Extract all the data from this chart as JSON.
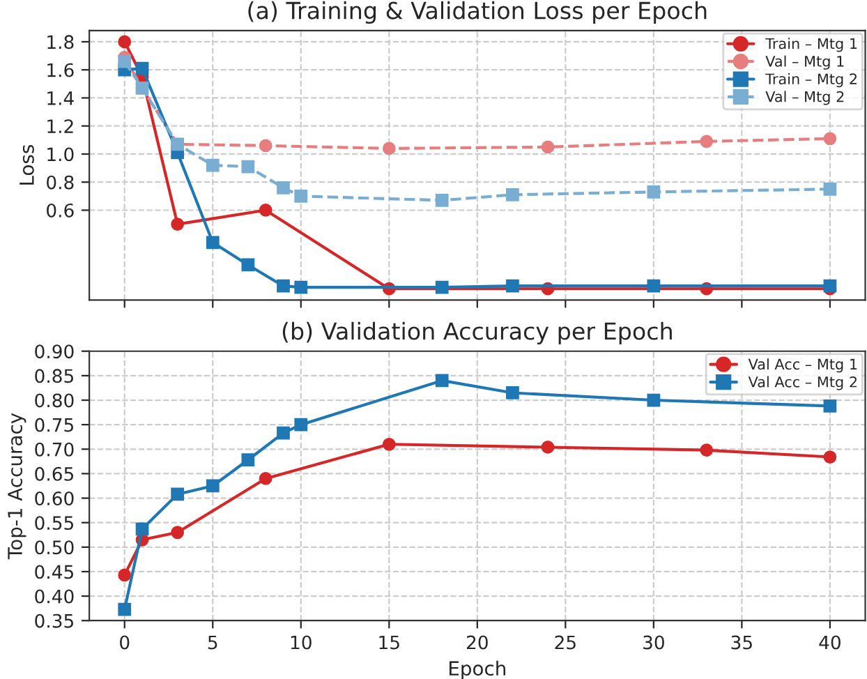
{
  "chart_data": [
    {
      "type": "line",
      "title": "(a) Training & Validation Loss per Epoch",
      "ylabel": "Loss",
      "xlim": [
        -2,
        42
      ],
      "xticks": [
        {
          "value": 0,
          "label": null
        },
        {
          "value": 5,
          "label": null
        },
        {
          "value": 10,
          "label": null
        },
        {
          "value": 15,
          "label": null
        },
        {
          "value": 20,
          "label": null
        },
        {
          "value": 25,
          "label": null
        },
        {
          "value": 30,
          "label": null
        },
        {
          "value": 35,
          "label": null
        },
        {
          "value": 40,
          "label": null
        }
      ],
      "ylim": [
        -0.04,
        1.88
      ],
      "yticks": [
        {
          "value": 0.6,
          "label": "0.6"
        },
        {
          "value": 0.8,
          "label": "0.8"
        },
        {
          "value": 1.0,
          "label": "1.0"
        },
        {
          "value": 1.2,
          "label": "1.2"
        },
        {
          "value": 1.4,
          "label": "1.4"
        },
        {
          "value": 1.6,
          "label": "1.6"
        },
        {
          "value": 1.8,
          "label": "1.8"
        }
      ],
      "tick_labels": "y",
      "grid": true,
      "legend": "top right",
      "series": [
        {
          "name": "Train – Mtg 1",
          "color": "#d62728",
          "marker": "circle",
          "line_style": "solid",
          "x": [
            0,
            1,
            3,
            8,
            15,
            24,
            33,
            40
          ],
          "values": [
            1.8,
            1.55,
            0.5,
            0.6,
            0.04,
            0.04,
            0.04,
            0.04
          ]
        },
        {
          "name": "Val – Mtg 1",
          "color": "#e67d7e",
          "marker": "circle",
          "line_style": "dashed",
          "x": [
            0,
            1,
            3,
            8,
            15,
            24,
            33,
            40
          ],
          "values": [
            1.69,
            1.47,
            1.07,
            1.06,
            1.04,
            1.05,
            1.09,
            1.11
          ]
        },
        {
          "name": "Train – Mtg 2",
          "color": "#1f77b4",
          "marker": "square",
          "line_style": "solid",
          "x": [
            0,
            1,
            3,
            5,
            7,
            9,
            10,
            18,
            22,
            30,
            40
          ],
          "values": [
            1.6,
            1.61,
            1.01,
            0.37,
            0.21,
            0.06,
            0.05,
            0.05,
            0.06,
            0.06,
            0.06
          ]
        },
        {
          "name": "Val – Mtg 2",
          "color": "#79add2",
          "marker": "square",
          "line_style": "dashed",
          "x": [
            0,
            1,
            3,
            5,
            7,
            9,
            10,
            18,
            22,
            30,
            40
          ],
          "values": [
            1.66,
            1.47,
            1.07,
            0.92,
            0.91,
            0.76,
            0.7,
            0.67,
            0.71,
            0.73,
            0.75
          ]
        }
      ]
    },
    {
      "type": "line",
      "title": "(b) Validation Accuracy per Epoch",
      "xlabel": "Epoch",
      "ylabel": "Top-1 Accuracy",
      "xlim": [
        -2,
        42
      ],
      "xticks": [
        0,
        5,
        10,
        15,
        20,
        25,
        30,
        35,
        40
      ],
      "ylim": [
        0.35,
        0.9
      ],
      "yticks": [
        {
          "value": 0.35,
          "label": "0.35"
        },
        {
          "value": 0.4,
          "label": "0.40"
        },
        {
          "value": 0.45,
          "label": "0.45"
        },
        {
          "value": 0.5,
          "label": "0.50"
        },
        {
          "value": 0.55,
          "label": "0.55"
        },
        {
          "value": 0.6,
          "label": "0.60"
        },
        {
          "value": 0.65,
          "label": "0.65"
        },
        {
          "value": 0.7,
          "label": "0.70"
        },
        {
          "value": 0.75,
          "label": "0.75"
        },
        {
          "value": 0.8,
          "label": "0.80"
        },
        {
          "value": 0.85,
          "label": "0.85"
        },
        {
          "value": 0.9,
          "label": "0.90"
        }
      ],
      "grid": true,
      "legend": "top right",
      "series": [
        {
          "name": "Val Acc – Mtg 1",
          "color": "#d62728",
          "marker": "circle",
          "line_style": "solid",
          "x": [
            0,
            1,
            3,
            8,
            15,
            24,
            33,
            40
          ],
          "values": [
            0.443,
            0.515,
            0.53,
            0.64,
            0.71,
            0.704,
            0.698,
            0.684
          ]
        },
        {
          "name": "Val Acc – Mtg 2",
          "color": "#1f77b4",
          "marker": "square",
          "line_style": "solid",
          "x": [
            0,
            1,
            3,
            5,
            7,
            9,
            10,
            18,
            22,
            30,
            40
          ],
          "values": [
            0.373,
            0.537,
            0.608,
            0.625,
            0.678,
            0.733,
            0.75,
            0.84,
            0.815,
            0.8,
            0.788
          ]
        }
      ]
    }
  ]
}
